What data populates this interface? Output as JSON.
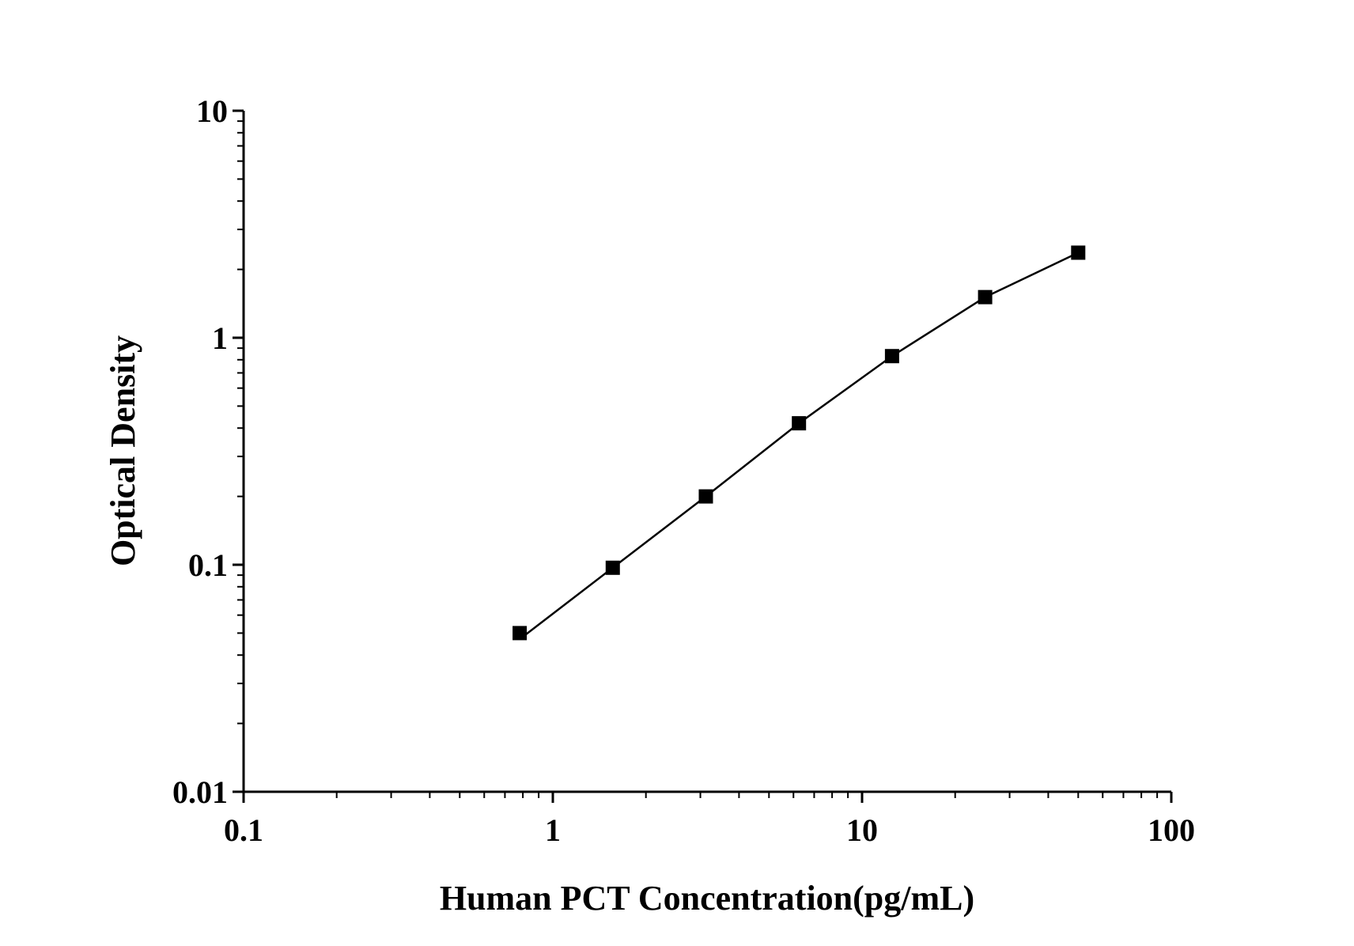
{
  "chart_data": {
    "type": "line",
    "title": "",
    "xlabel": "Human PCT Concentration(pg/mL)",
    "ylabel": "Optical Density",
    "x_scale": "log",
    "y_scale": "log",
    "xlim": [
      0.1,
      100
    ],
    "ylim": [
      0.01,
      10
    ],
    "x_ticks": [
      "0.1",
      "1",
      "10",
      "100"
    ],
    "y_ticks": [
      "0.01",
      "0.1",
      "1",
      "10"
    ],
    "x_tick_values": [
      0.1,
      1,
      10,
      100
    ],
    "y_tick_values": [
      0.01,
      0.1,
      1,
      10
    ],
    "grid": false,
    "marker": "square",
    "series_color": "#000000",
    "series": [
      {
        "x": [
          0.78125,
          1.5625,
          3.125,
          6.25,
          12.5,
          25,
          50
        ],
        "y": [
          0.05,
          0.097,
          0.2,
          0.42,
          0.83,
          1.51,
          2.37
        ]
      }
    ],
    "fit_start": {
      "x": 0.78125,
      "y": 0.047
    }
  }
}
